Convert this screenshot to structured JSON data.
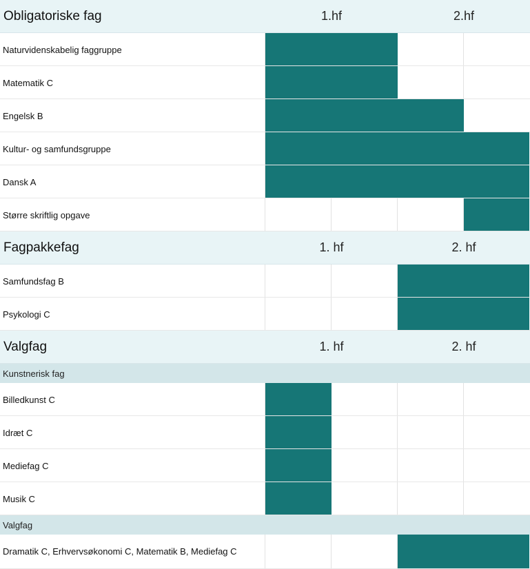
{
  "colors": {
    "bar": "#167676",
    "section_bg": "#e8f4f6",
    "subheader_bg": "#d3e6e9"
  },
  "rows": [
    {
      "type": "section",
      "title": "Obligatoriske fag",
      "col1": "1.hf",
      "col2": "2.hf"
    },
    {
      "type": "subject",
      "label": "Naturvidenskabelig faggruppe",
      "filled": [
        true,
        true,
        false,
        false
      ]
    },
    {
      "type": "subject",
      "label": "Matematik C",
      "filled": [
        true,
        true,
        false,
        false
      ]
    },
    {
      "type": "subject",
      "label": "Engelsk B",
      "filled": [
        true,
        true,
        true,
        false
      ]
    },
    {
      "type": "subject",
      "label": "Kultur- og samfundsgruppe",
      "filled": [
        true,
        true,
        true,
        true
      ]
    },
    {
      "type": "subject",
      "label": "Dansk A",
      "filled": [
        true,
        true,
        true,
        true
      ]
    },
    {
      "type": "subject",
      "label": "Større skriftlig opgave",
      "filled": [
        false,
        false,
        false,
        true
      ]
    },
    {
      "type": "section",
      "title": "Fagpakkefag",
      "col1": "1. hf",
      "col2": "2. hf"
    },
    {
      "type": "subject",
      "label": "Samfundsfag B",
      "filled": [
        false,
        false,
        true,
        true
      ]
    },
    {
      "type": "subject",
      "label": "Psykologi C",
      "filled": [
        false,
        false,
        true,
        true
      ]
    },
    {
      "type": "section",
      "title": "Valgfag",
      "col1": "1. hf",
      "col2": "2. hf"
    },
    {
      "type": "subheader",
      "label": "Kunstnerisk fag"
    },
    {
      "type": "subject",
      "label": "Billedkunst C",
      "filled": [
        true,
        false,
        false,
        false
      ]
    },
    {
      "type": "subject",
      "label": "Idræt C",
      "filled": [
        true,
        false,
        false,
        false
      ]
    },
    {
      "type": "subject",
      "label": "Mediefag C",
      "filled": [
        true,
        false,
        false,
        false
      ]
    },
    {
      "type": "subject",
      "label": "Musik C",
      "filled": [
        true,
        false,
        false,
        false
      ]
    },
    {
      "type": "subheader",
      "label": "Valgfag"
    },
    {
      "type": "subject",
      "label": "Dramatik C, Erhvervsøkonomi C, Matematik B, Mediefag C",
      "filled": [
        false,
        false,
        true,
        true
      ]
    }
  ]
}
